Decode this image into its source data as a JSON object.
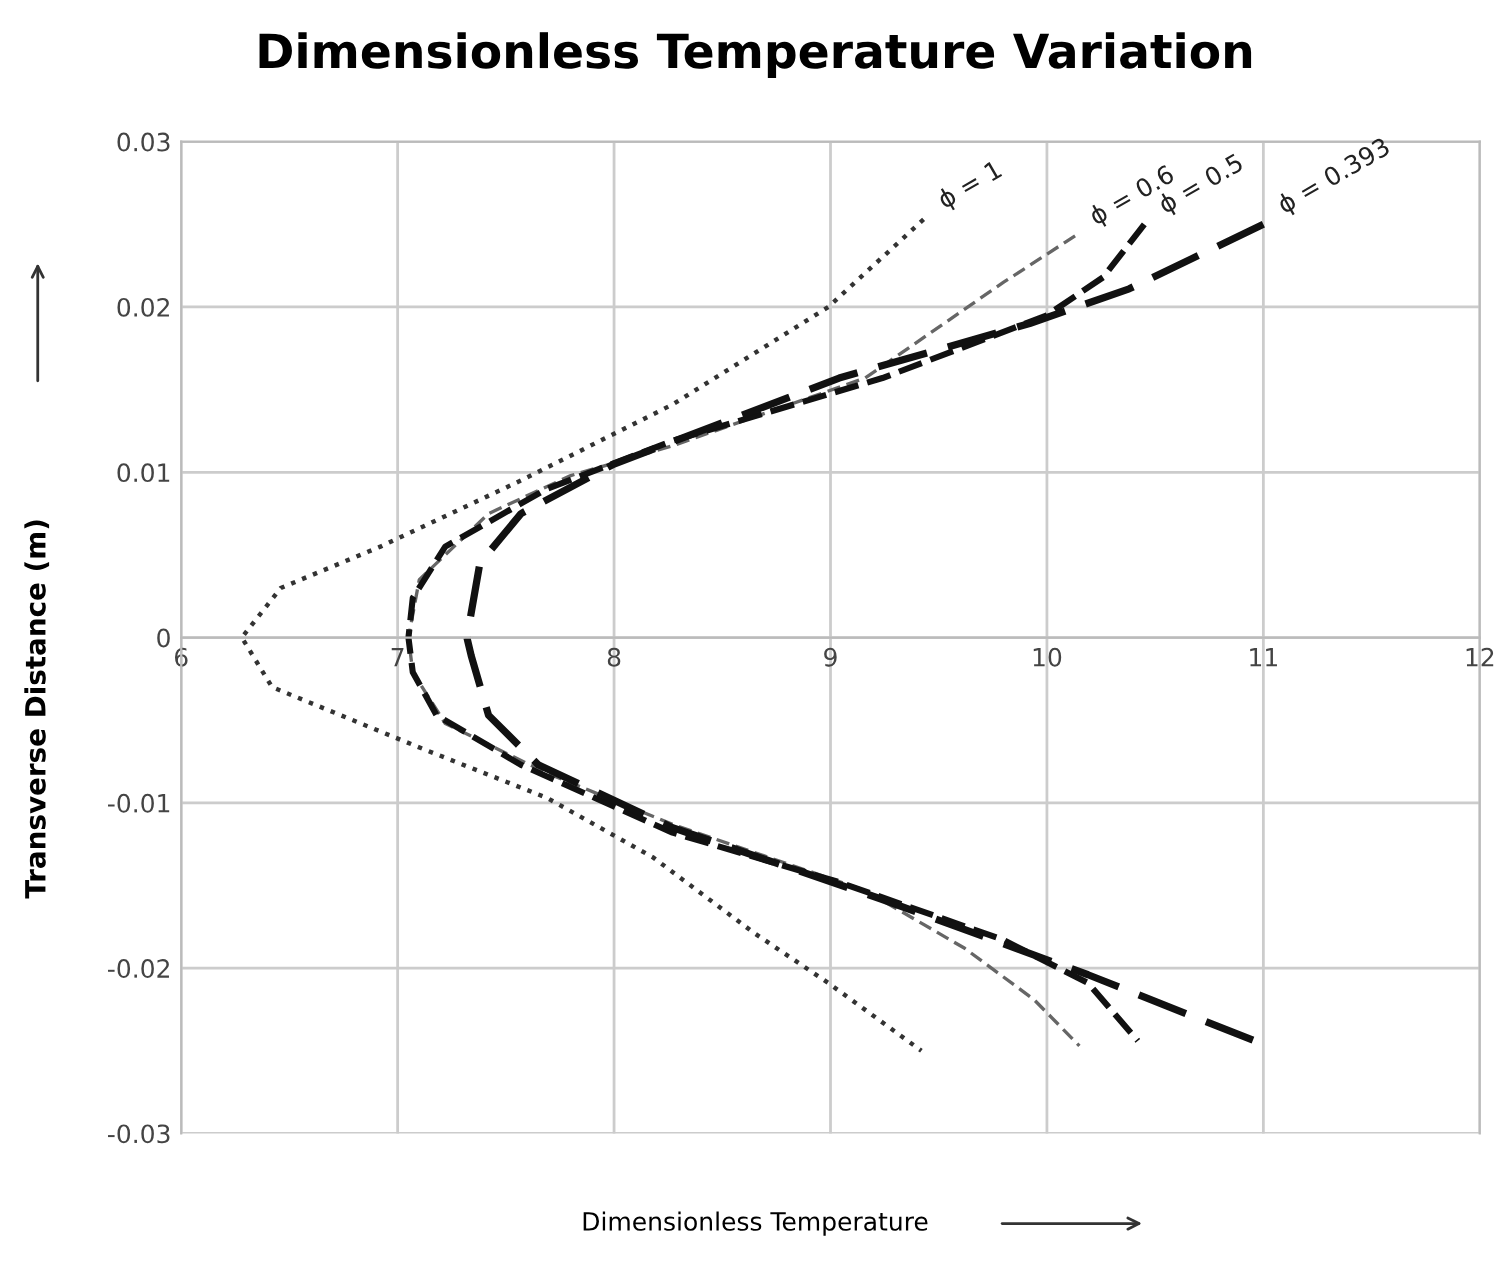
{
  "chart_data": {
    "type": "line",
    "title": "Dimensionless Temperature Variation",
    "xlabel": "Dimensionless Temperature",
    "ylabel": "Transverse Distance (m)",
    "xlim": [
      6,
      12
    ],
    "xticks": [
      6,
      7,
      8,
      9,
      10,
      11,
      12
    ],
    "ylim": [
      -0.03,
      0.03
    ],
    "yticks": [
      -0.03,
      -0.02,
      -0.01,
      0,
      0.01,
      0.02,
      0.03
    ],
    "grid": true,
    "legend": false,
    "marker": "none",
    "series": [
      {
        "name": "ϕ = 1",
        "color": "#333333",
        "line_style": "dotted",
        "x": [
          9.43,
          8.99,
          8.27,
          7.57,
          6.92,
          6.46,
          6.28,
          6.42,
          7.11,
          7.69,
          8.18,
          8.65,
          8.99,
          9.42
        ],
        "values": [
          0.0253,
          0.02,
          0.0141,
          0.0095,
          0.0055,
          0.003,
          0,
          -0.003,
          -0.0067,
          -0.0097,
          -0.0133,
          -0.0179,
          -0.0209,
          -0.025
        ]
      },
      {
        "name": "ϕ = 0.6",
        "color": "#666666",
        "line_style": "dashed",
        "x": [
          10.13,
          9.8,
          9.16,
          8.27,
          7.8,
          7.42,
          7.1,
          7.05,
          7.07,
          7.22,
          7.69,
          8.27,
          9.16,
          9.62,
          9.94,
          10.15
        ],
        "values": [
          0.0243,
          0.0215,
          0.0157,
          0.0116,
          0.0098,
          0.0075,
          0.0035,
          0,
          -0.0021,
          -0.0052,
          -0.0082,
          -0.0113,
          -0.0153,
          -0.0188,
          -0.0219,
          -0.0247
        ]
      },
      {
        "name": "ϕ = 0.5",
        "color": "#111111",
        "line_style": "dashed",
        "x": [
          10.45,
          10.26,
          10.0,
          9.24,
          8.27,
          7.69,
          7.22,
          7.07,
          7.05,
          7.07,
          7.18,
          7.57,
          8.27,
          9.04,
          9.8,
          10.19,
          10.42
        ],
        "values": [
          0.025,
          0.0218,
          0.0195,
          0.0157,
          0.0119,
          0.009,
          0.0055,
          0.0024,
          0,
          -0.0021,
          -0.0047,
          -0.0077,
          -0.0118,
          -0.0148,
          -0.0183,
          -0.0209,
          -0.0244
        ]
      },
      {
        "name": "ϕ = 0.393",
        "color": "#111111",
        "line_style": "dashed",
        "x": [
          11.0,
          10.38,
          9.92,
          9.04,
          8.0,
          7.57,
          7.38,
          7.32,
          7.34,
          7.42,
          7.65,
          8.27,
          9.23,
          10.19,
          10.96
        ],
        "values": [
          0.025,
          0.0211,
          0.019,
          0.0157,
          0.0105,
          0.0075,
          0.0045,
          0,
          -0.0011,
          -0.0047,
          -0.0077,
          -0.0115,
          -0.0158,
          -0.0204,
          -0.0244
        ]
      }
    ]
  }
}
